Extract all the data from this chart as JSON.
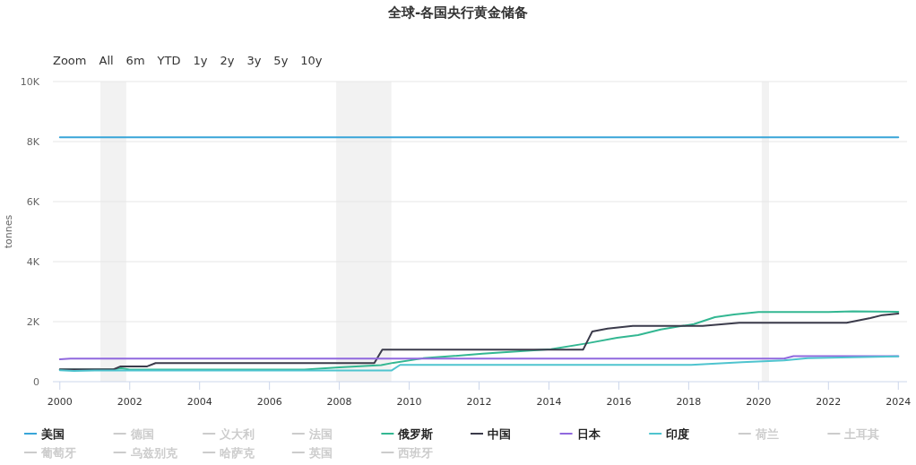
{
  "chart_data": {
    "type": "line",
    "title": "全球-各国央行黄金储备",
    "ylabel": "tonnes",
    "annotations": [
      "Zoom",
      "All",
      "6m",
      "YTD",
      "1y",
      "2y",
      "3y",
      "5y",
      "10y"
    ],
    "xlim": [
      1999.8,
      2024.25
    ],
    "xticks": [
      2000,
      2002,
      2004,
      2006,
      2008,
      2010,
      2012,
      2014,
      2016,
      2018,
      2020,
      2022,
      2024
    ],
    "ylim": [
      0,
      10000
    ],
    "yticks": [
      0,
      {
        "value": 2000,
        "label": "2K"
      },
      {
        "value": 4000,
        "label": "4K"
      },
      {
        "value": 6000,
        "label": "6K"
      },
      {
        "value": 8000,
        "label": "8K"
      },
      {
        "value": 10000,
        "label": "10K"
      }
    ],
    "grid": "y",
    "legend": "bottom",
    "bands": [
      {
        "axis": "x",
        "from": 2001.16,
        "to": 2001.9,
        "color": "#f2f2f2"
      },
      {
        "axis": "x",
        "from": 2007.91,
        "to": 2009.49,
        "color": "#f2f2f2"
      },
      {
        "axis": "x",
        "from": 2020.09,
        "to": 2020.3,
        "color": "#f2f2f2"
      }
    ],
    "series": [
      {
        "name": "美国",
        "color": "#38a5d8",
        "x": [
          2000,
          2024
        ],
        "values": [
          8140,
          8140
        ]
      },
      {
        "name": "德国",
        "color": "#cccccc"
      },
      {
        "name": "义大利",
        "color": "#cccccc"
      },
      {
        "name": "法国",
        "color": "#cccccc"
      },
      {
        "name": "俄罗斯",
        "color": "#33b792",
        "x": [
          2000,
          2001.5,
          2001.75,
          2002,
          2007,
          2008,
          2009.2,
          2009.55,
          2010.4,
          2012.1,
          2014.06,
          2015.1,
          2015.95,
          2016.55,
          2017.2,
          2018.15,
          2018.75,
          2019.3,
          2020.0,
          2022.0,
          2022.7,
          2024
        ],
        "values": [
          400,
          400,
          450,
          400,
          400,
          480,
          550,
          630,
          780,
          930,
          1080,
          1280,
          1460,
          1550,
          1740,
          1920,
          2150,
          2240,
          2320,
          2320,
          2340,
          2330
        ]
      },
      {
        "name": "中国",
        "color": "#3b3b4b",
        "x": [
          2000,
          2001.54,
          2001.74,
          2002.5,
          2002.74,
          2009.0,
          2009.23,
          2014.98,
          2015.24,
          2015.68,
          2016.4,
          2018.4,
          2019.45,
          2022.52,
          2023.2,
          2023.55,
          2024
        ],
        "values": [
          410,
          410,
          510,
          510,
          620,
          620,
          1070,
          1070,
          1670,
          1770,
          1860,
          1860,
          1960,
          1960,
          2120,
          2220,
          2270
        ]
      },
      {
        "name": "日本",
        "color": "#9068de",
        "x": [
          2000,
          2000.3,
          2020.73,
          2021.0,
          2024
        ],
        "values": [
          750,
          770,
          770,
          850,
          850
        ]
      },
      {
        "name": "印度",
        "color": "#4fc4cf",
        "x": [
          2000,
          2000.4,
          2001,
          2009.49,
          2009.74,
          2018.07,
          2019.53,
          2020.73,
          2021.41,
          2022.69,
          2024
        ],
        "values": [
          380,
          360,
          370,
          370,
          560,
          560,
          650,
          710,
          780,
          810,
          840
        ]
      },
      {
        "name": "荷兰",
        "color": "#cccccc"
      },
      {
        "name": "土耳其",
        "color": "#cccccc"
      },
      {
        "name": "葡萄牙",
        "color": "#cccccc"
      },
      {
        "name": "乌兹别克",
        "color": "#cccccc"
      },
      {
        "name": "哈萨克",
        "color": "#cccccc"
      },
      {
        "name": "英国",
        "color": "#cccccc"
      },
      {
        "name": "西班牙",
        "color": "#cccccc"
      }
    ]
  }
}
